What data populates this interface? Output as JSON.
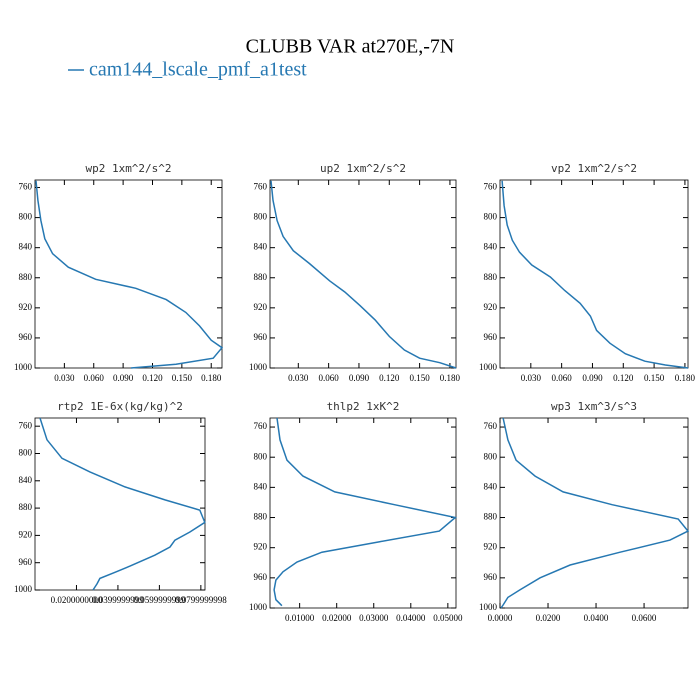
{
  "title": "CLUBB VAR at270E,-7N",
  "legend": {
    "name": "cam144_lscale_pmf_a1test",
    "color": "#2678b2"
  },
  "chart_data": [
    {
      "type": "line",
      "title": "wp2  1xm^2/s^2",
      "color": "#2678b2",
      "values": [
        0.001,
        0.003,
        0.006,
        0.01,
        0.018,
        0.034,
        0.062,
        0.103,
        0.134,
        0.154,
        0.168,
        0.18,
        0.191,
        0.182,
        0.144,
        0.098
      ],
      "levels": [
        751,
        777,
        804,
        828,
        848,
        866,
        882,
        894,
        909,
        926,
        944,
        963,
        973,
        987,
        995,
        1000
      ],
      "xlim": [
        0,
        0.191
      ],
      "ylim": [
        1000,
        750
      ],
      "xticks": [
        {
          "value": 0.03,
          "label": "0.030"
        },
        {
          "value": 0.06,
          "label": "0.060"
        },
        {
          "value": 0.09,
          "label": "0.090"
        },
        {
          "value": 0.12,
          "label": "0.120"
        },
        {
          "value": 0.15,
          "label": "0.150"
        },
        {
          "value": 0.18,
          "label": "0.180"
        }
      ],
      "yticks": [
        760,
        800,
        840,
        880,
        920,
        960,
        1000
      ]
    },
    {
      "type": "line",
      "title": "up2  1xm^2/s^2",
      "color": "#2678b2",
      "values": [
        0.003,
        0.005,
        0.009,
        0.015,
        0.025,
        0.041,
        0.061,
        0.076,
        0.091,
        0.106,
        0.12,
        0.135,
        0.15,
        0.17,
        0.186
      ],
      "levels": [
        751,
        777,
        804,
        825,
        844,
        861,
        884,
        899,
        917,
        936,
        958,
        976,
        987,
        993,
        1000
      ],
      "xlim": [
        0.002,
        0.186
      ],
      "ylim": [
        1000,
        750
      ],
      "xticks": [
        {
          "value": 0.03,
          "label": "0.030"
        },
        {
          "value": 0.06,
          "label": "0.060"
        },
        {
          "value": 0.09,
          "label": "0.090"
        },
        {
          "value": 0.12,
          "label": "0.120"
        },
        {
          "value": 0.15,
          "label": "0.150"
        },
        {
          "value": 0.18,
          "label": "0.180"
        }
      ],
      "yticks": [
        760,
        800,
        840,
        880,
        920,
        960,
        1000
      ]
    },
    {
      "type": "line",
      "title": "vp2  1xm^2/s^2",
      "color": "#2678b2",
      "values": [
        0.002,
        0.004,
        0.007,
        0.012,
        0.019,
        0.031,
        0.049,
        0.063,
        0.078,
        0.088,
        0.094,
        0.107,
        0.122,
        0.141,
        0.161,
        0.183
      ],
      "levels": [
        751,
        784,
        810,
        830,
        846,
        863,
        879,
        897,
        914,
        931,
        950,
        967,
        981,
        991,
        996,
        1000
      ],
      "xlim": [
        0,
        0.183
      ],
      "ylim": [
        1000,
        750
      ],
      "xticks": [
        {
          "value": 0.03,
          "label": "0.030"
        },
        {
          "value": 0.06,
          "label": "0.060"
        },
        {
          "value": 0.09,
          "label": "0.090"
        },
        {
          "value": 0.12,
          "label": "0.120"
        },
        {
          "value": 0.15,
          "label": "0.150"
        },
        {
          "value": 0.18,
          "label": "0.180"
        }
      ],
      "yticks": [
        760,
        800,
        840,
        880,
        920,
        960,
        1000
      ]
    },
    {
      "type": "line",
      "title": "rtp2  1E-6x(kg/kg)^2",
      "color": "#2678b2",
      "values": [
        0.0024,
        0.0058,
        0.013,
        0.0265,
        0.0434,
        0.0627,
        0.0795,
        0.0819,
        0.0747,
        0.0675,
        0.0651,
        0.0578,
        0.0458,
        0.0386,
        0.0313,
        0.0299,
        0.028
      ],
      "levels": [
        748,
        780,
        807,
        827,
        849,
        868,
        883,
        901,
        915,
        927,
        937,
        949,
        965,
        974,
        983,
        991,
        1000
      ],
      "xlim": [
        0,
        0.082
      ],
      "ylim": [
        1000,
        748
      ],
      "xticks": [
        {
          "value": 0.02,
          "label": "0.0200000000"
        },
        {
          "value": 0.04,
          "label": "0.0399999999"
        },
        {
          "value": 0.06,
          "label": "0.0599999999"
        },
        {
          "value": 0.08,
          "label": "0.0799999998"
        }
      ],
      "yticks": [
        760,
        800,
        840,
        880,
        920,
        960,
        1000
      ]
    },
    {
      "type": "line",
      "title": "thlp2  1xK^2",
      "color": "#2678b2",
      "values": [
        0.0039,
        0.0047,
        0.0066,
        0.0109,
        0.0195,
        0.0356,
        0.052,
        0.0477,
        0.0316,
        0.016,
        0.0093,
        0.0055,
        0.0036,
        0.0031,
        0.0036,
        0.0052
      ],
      "levels": [
        748,
        777,
        804,
        825,
        846,
        863,
        880,
        898,
        912,
        926,
        939,
        952,
        963,
        976,
        989,
        997
      ],
      "xlim": [
        0.002,
        0.0522
      ],
      "ylim": [
        1000,
        748
      ],
      "xticks": [
        {
          "value": 0.01,
          "label": "0.01000"
        },
        {
          "value": 0.02,
          "label": "0.02000"
        },
        {
          "value": 0.03,
          "label": "0.03000"
        },
        {
          "value": 0.04,
          "label": "0.04000"
        },
        {
          "value": 0.05,
          "label": "0.05000"
        }
      ],
      "yticks": [
        760,
        800,
        840,
        880,
        920,
        960,
        1000
      ]
    },
    {
      "type": "line",
      "title": "wp3  1xm^3/s^3",
      "color": "#2678b2",
      "values": [
        0.0013,
        0.0033,
        0.0067,
        0.0146,
        0.0263,
        0.0467,
        0.0742,
        0.0783,
        0.0708,
        0.05,
        0.0292,
        0.0167,
        0.0083,
        0.0033,
        0.0013,
        0.0004
      ],
      "levels": [
        748,
        777,
        804,
        825,
        846,
        863,
        882,
        898,
        910,
        926,
        943,
        960,
        976,
        986,
        996,
        1000
      ],
      "xlim": [
        0,
        0.0783
      ],
      "ylim": [
        1000,
        748
      ],
      "xticks": [
        {
          "value": 0,
          "label": "0.0000"
        },
        {
          "value": 0.02,
          "label": "0.0200"
        },
        {
          "value": 0.04,
          "label": "0.0400"
        },
        {
          "value": 0.06,
          "label": "0.0600"
        }
      ],
      "yticks": [
        760,
        800,
        840,
        880,
        920,
        960,
        1000
      ]
    }
  ]
}
